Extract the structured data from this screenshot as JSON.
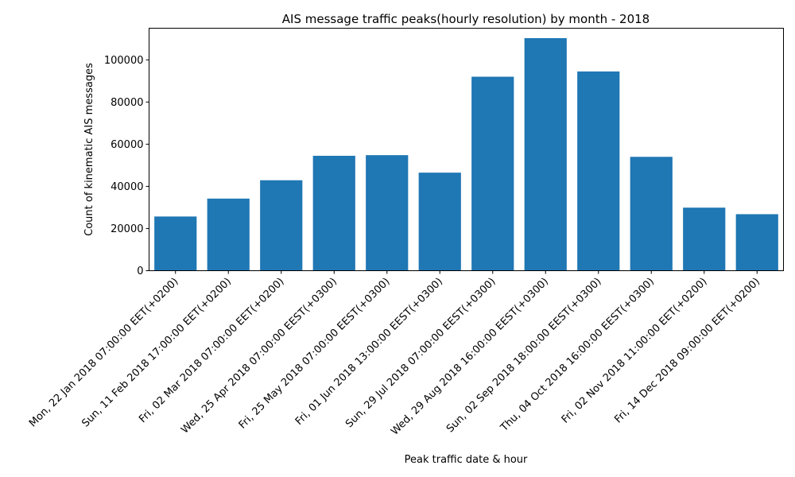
{
  "chart_data": {
    "type": "bar",
    "title": "AIS message traffic peaks(hourly resolution) by month - 2018",
    "xlabel": "Peak traffic date & hour",
    "ylabel": "Count of kinematic AIS messages",
    "categories": [
      "Mon, 22 Jan 2018 07:00:00 EET(+0200)",
      "Sun, 11 Feb 2018 17:00:00 EET(+0200)",
      "Fri, 02 Mar 2018 07:00:00 EET(+0200)",
      "Wed, 25 Apr 2018 07:00:00 EEST(+0300)",
      "Fri, 25 May 2018 07:00:00 EEST(+0300)",
      "Fri, 01 Jun 2018 13:00:00 EEST(+0300)",
      "Sun, 29 Jul 2018 07:00:00 EEST(+0300)",
      "Wed, 29 Aug 2018 16:00:00 EEST(+0300)",
      "Sun, 02 Sep 2018 18:00:00 EEST(+0300)",
      "Thu, 04 Oct 2018 16:00:00 EEST(+0300)",
      "Fri, 02 Nov 2018 11:00:00 EET(+0200)",
      "Fri, 14 Dec 2018 09:00:00 EET(+0200)"
    ],
    "values": [
      25700,
      34200,
      42900,
      54500,
      54800,
      46500,
      92000,
      110300,
      94500,
      54000,
      29900,
      26800
    ],
    "ylim": [
      0,
      115000
    ],
    "yticks": [
      0,
      20000,
      40000,
      60000,
      80000,
      100000
    ],
    "bar_color": "#1f77b4",
    "grid": false,
    "legend": "none"
  }
}
